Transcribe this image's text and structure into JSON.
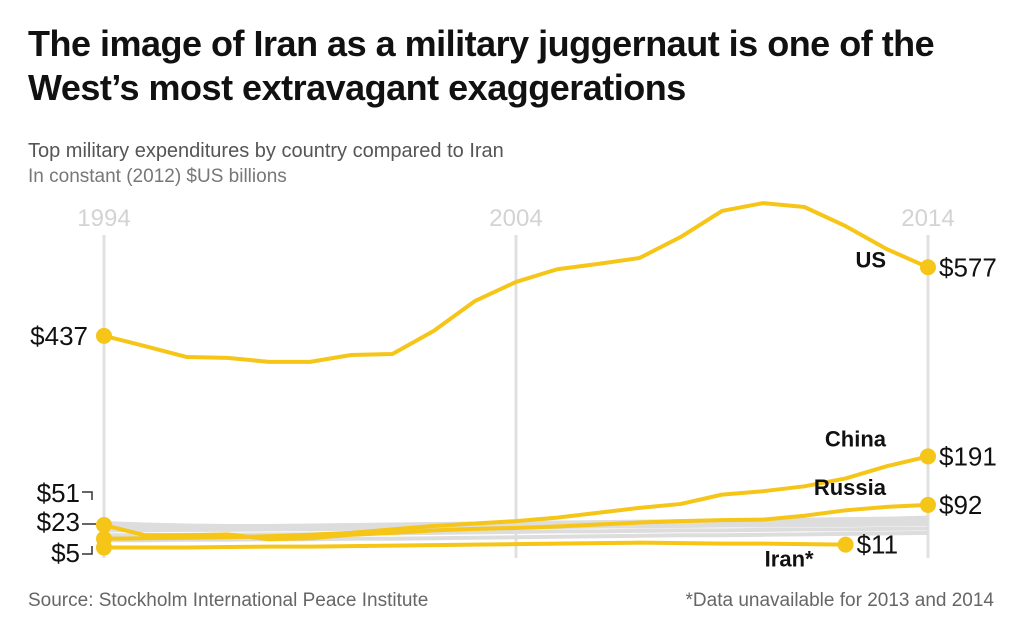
{
  "title": "The image of Iran as a military juggernaut is one of the West’s most extravagant exaggerations",
  "subtitle": "Top military expenditures by country compared to Iran",
  "units": "In constant (2012) $US billions",
  "source": "Source: Stockholm International Peace Institute",
  "footnote": "*Data unavailable for 2013 and 2014",
  "colors": {
    "highlight": "#f5c518",
    "other": "#dddddd",
    "grid": "#e0e0e0"
  },
  "chart_data": {
    "type": "line",
    "x_ticks": [
      "1994",
      "2004",
      "2014"
    ],
    "xlim": [
      1994,
      2014
    ],
    "ylim": [
      0,
      720
    ],
    "grid": "vertical at tick years",
    "x": [
      1994,
      1995,
      1996,
      1997,
      1998,
      1999,
      2000,
      2001,
      2002,
      2003,
      2004,
      2005,
      2006,
      2007,
      2008,
      2009,
      2010,
      2011,
      2012,
      2013,
      2014
    ],
    "series": [
      {
        "name": "US",
        "highlight": true,
        "start_label": "$437",
        "end_label": "$577",
        "values": [
          437,
          416,
          394,
          392,
          384,
          384,
          398,
          400,
          447,
          508,
          547,
          573,
          584,
          596,
          639,
          692,
          708,
          700,
          661,
          614,
          577
        ]
      },
      {
        "name": "China",
        "highlight": true,
        "start_label": "$23",
        "end_label": "$191",
        "values": [
          23,
          24,
          25,
          26,
          28,
          31,
          35,
          42,
          49,
          54,
          59,
          66,
          76,
          86,
          94,
          113,
          120,
          130,
          146,
          171,
          191
        ]
      },
      {
        "name": "Russia",
        "highlight": true,
        "start_label": "$51",
        "end_label": "$92",
        "values": [
          51,
          30,
          30,
          32,
          22,
          24,
          31,
          35,
          40,
          43,
          45,
          48,
          52,
          56,
          59,
          61,
          62,
          70,
          81,
          88,
          92
        ]
      },
      {
        "name": "Iran*",
        "highlight": true,
        "start_label": "$5",
        "end_label": "$11",
        "values": [
          5,
          5,
          5,
          6,
          7,
          7,
          8,
          9,
          10,
          11,
          12,
          13,
          14,
          15,
          14,
          13,
          13,
          12,
          11,
          null,
          null
        ]
      },
      {
        "highlight": false,
        "values": [
          55,
          52,
          50,
          49,
          49,
          50,
          51,
          52,
          53,
          54,
          55,
          56,
          57,
          58,
          59,
          60,
          61,
          62,
          63,
          64,
          66
        ]
      },
      {
        "highlight": false,
        "values": [
          48,
          47,
          47,
          46,
          46,
          46,
          47,
          48,
          49,
          50,
          51,
          52,
          52,
          53,
          53,
          54,
          55,
          56,
          57,
          58,
          60
        ]
      },
      {
        "highlight": false,
        "values": [
          40,
          40,
          41,
          41,
          42,
          42,
          43,
          44,
          45,
          46,
          47,
          47,
          48,
          48,
          49,
          50,
          50,
          51,
          51,
          52,
          53
        ]
      },
      {
        "highlight": false,
        "values": [
          30,
          30,
          31,
          31,
          32,
          32,
          33,
          34,
          35,
          36,
          37,
          38,
          38,
          39,
          40,
          40,
          41,
          42,
          42,
          43,
          44
        ]
      },
      {
        "highlight": false,
        "values": [
          20,
          20,
          21,
          21,
          22,
          22,
          23,
          23,
          24,
          25,
          26,
          27,
          28,
          29,
          30,
          30,
          31,
          32,
          33,
          34,
          35
        ]
      }
    ]
  }
}
